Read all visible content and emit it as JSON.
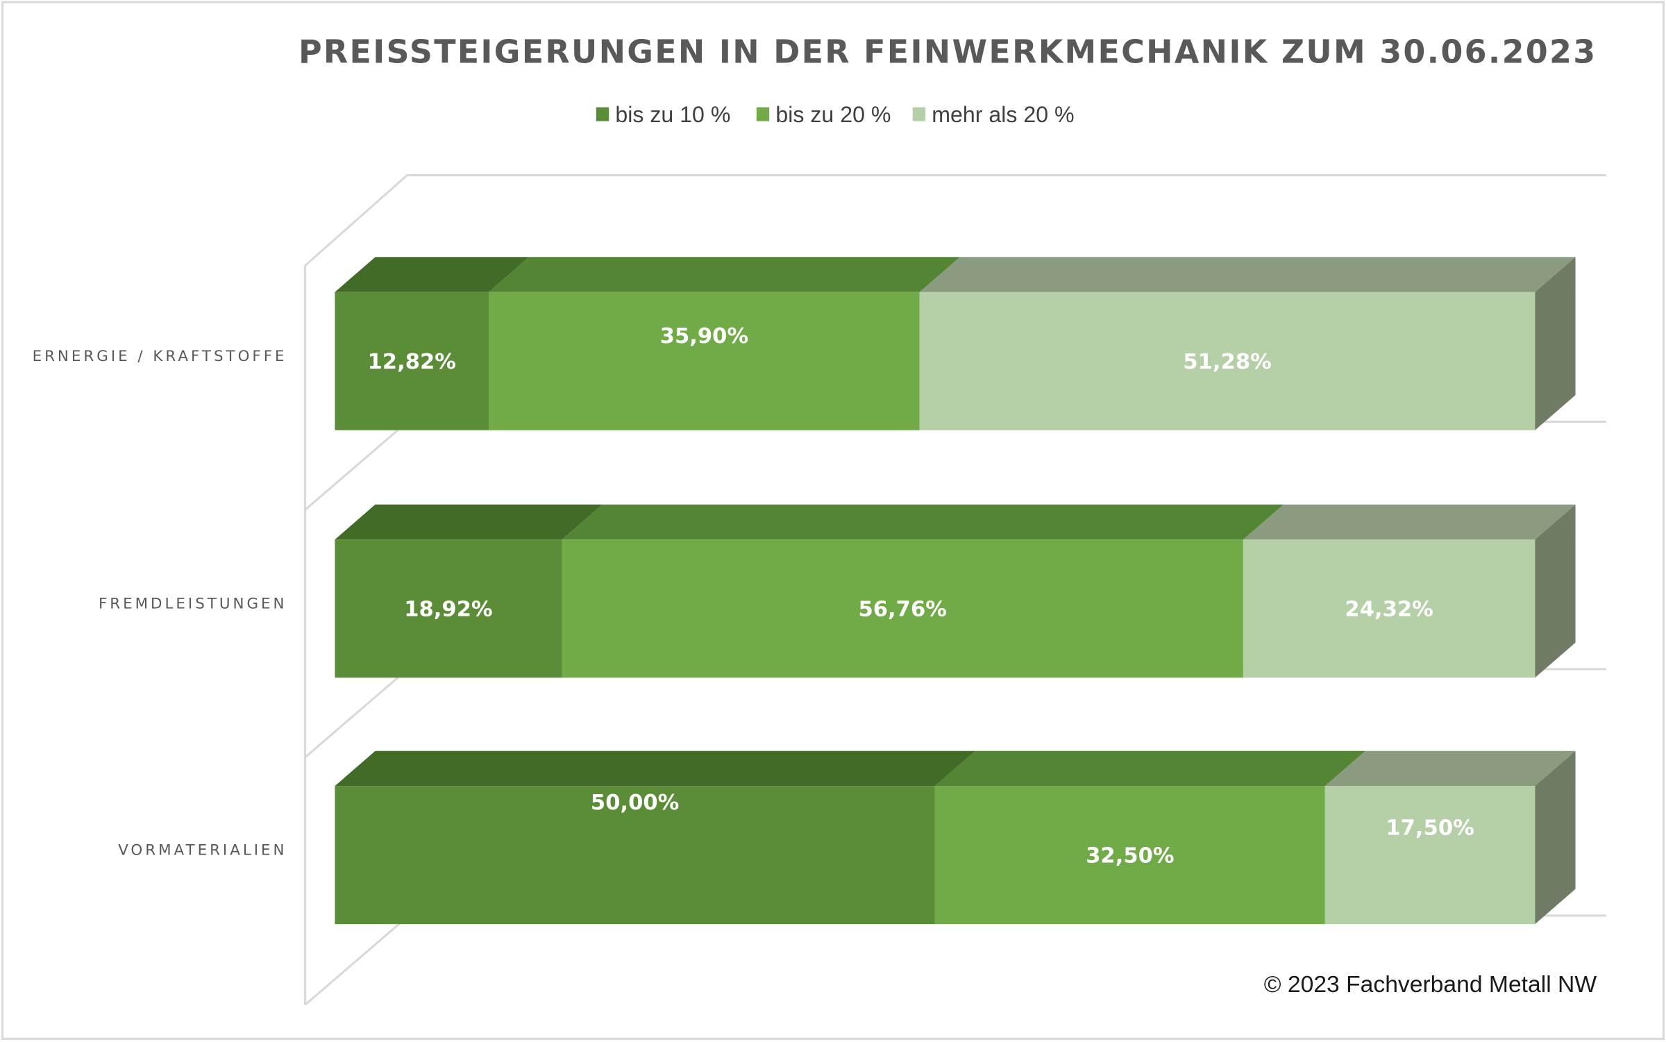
{
  "chart_data": {
    "type": "bar",
    "orientation": "horizontal",
    "stacked": "100%",
    "style": "3d",
    "title": "PREISSTEIGERUNGEN IN DER FEINWERKMECHANIK ZUM 30.06.2023",
    "categories": [
      "ERNERGIE / KRAFTSTOFFE",
      "FREMDLEISTUNGEN",
      "VORMATERIALIEN"
    ],
    "series": [
      {
        "name": "bis zu 10 %",
        "values": [
          12.82,
          18.92,
          50.0
        ],
        "labels": [
          "12,82%",
          "18,92%",
          "50,00%"
        ],
        "color": "#5b8c37",
        "top_color": "#426b28"
      },
      {
        "name": "bis zu 20 %",
        "values": [
          35.9,
          56.76,
          32.5
        ],
        "labels": [
          "35,90%",
          "56,76%",
          "32,50%"
        ],
        "color": "#70ab48",
        "top_color": "#548535"
      },
      {
        "name": "mehr als 20 %",
        "values": [
          51.28,
          24.32,
          17.5
        ],
        "labels": [
          "51,28%",
          "24,32%",
          "17,50%"
        ],
        "color": "#b5cfa7",
        "top_color": "#8a9b80"
      }
    ],
    "side_color": "#6f7b65",
    "xlim": [
      0,
      100
    ],
    "legend_position": "top",
    "grid": false,
    "xlabel": "",
    "ylabel": ""
  },
  "copyright": "© 2023 Fachverband Metall NW"
}
